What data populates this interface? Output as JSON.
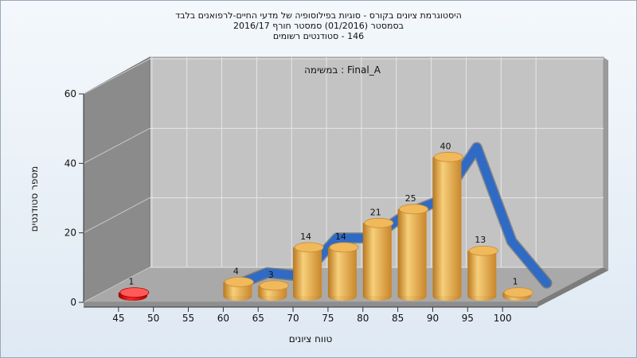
{
  "titles": {
    "line1": "היסטוגרמת ציונים בקורס - סוגיות בפילוסופיה של מדעי החיים-לרפואנים בלבד",
    "line2": "בסמסטר  (01/2016)  סמסטר חורף 2016/17",
    "line3": "146 - סטודנטים רשומים"
  },
  "chart_data": {
    "type": "bar",
    "subtitle": "Final_A : במשימה",
    "xlabel": "טווח ציונים",
    "ylabel": "מספר סטודנטים",
    "x_ticks": [
      "45",
      "50",
      "55",
      "60",
      "65",
      "70",
      "75",
      "80",
      "85",
      "90",
      "95",
      "100"
    ],
    "y_ticks": [
      "0",
      "20",
      "40",
      "60"
    ],
    "ylim": [
      0,
      60
    ],
    "grid": true,
    "bars": [
      {
        "x": 45,
        "value": 1,
        "label": "1",
        "color": "#dd1111"
      },
      {
        "x": 60,
        "value": 4,
        "label": "4",
        "color": "#e8a33c"
      },
      {
        "x": 65,
        "value": 3,
        "label": "3",
        "color": "#e8a33c"
      },
      {
        "x": 70,
        "value": 14,
        "label": "14",
        "color": "#e8a33c"
      },
      {
        "x": 75,
        "value": 14,
        "label": "14",
        "color": "#e8a33c"
      },
      {
        "x": 80,
        "value": 21,
        "label": "21",
        "color": "#e8a33c"
      },
      {
        "x": 85,
        "value": 25,
        "label": "25",
        "color": "#e8a33c"
      },
      {
        "x": 90,
        "value": 40,
        "label": "40",
        "color": "#e8a33c"
      },
      {
        "x": 95,
        "value": 13,
        "label": "13",
        "color": "#e8a33c"
      },
      {
        "x": 100,
        "value": 1,
        "label": "1",
        "color": "#e8a33c"
      }
    ],
    "curve_color": "#2f6bc4"
  }
}
